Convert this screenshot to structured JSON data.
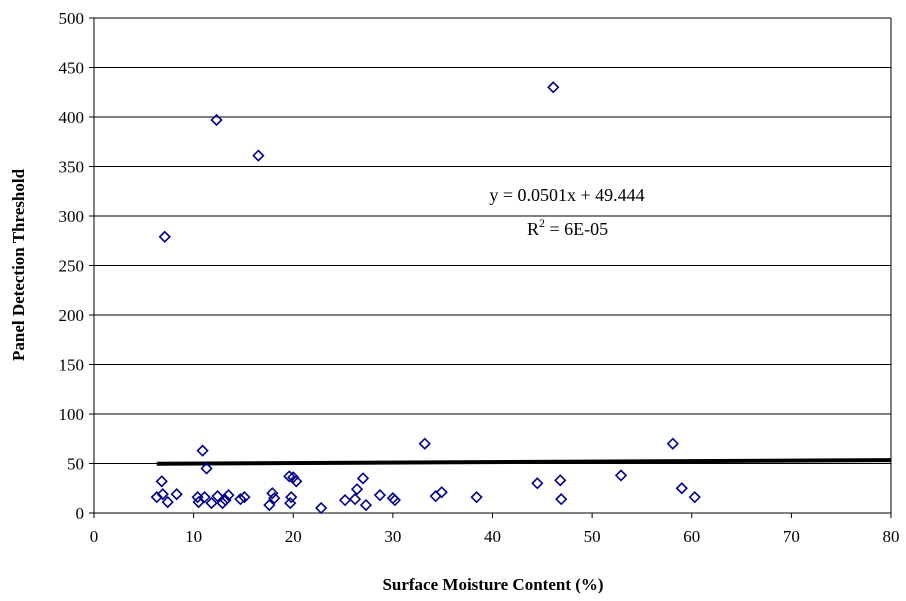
{
  "chart_data": {
    "type": "scatter",
    "title": "",
    "xlabel": "Surface Moisture Content (%)",
    "ylabel": "Panel Detection Threshold",
    "xlim": [
      0,
      80
    ],
    "ylim": [
      0,
      500
    ],
    "xticks": [
      0,
      10,
      20,
      30,
      40,
      50,
      60,
      70,
      80
    ],
    "yticks": [
      0,
      50,
      100,
      150,
      200,
      250,
      300,
      350,
      400,
      450,
      500
    ],
    "grid": {
      "horizontal": true,
      "vertical": false
    },
    "legend": "none",
    "marker": {
      "shape": "diamond-open",
      "color": "#00008b"
    },
    "trendline": {
      "type": "linear",
      "slope": 0.0501,
      "intercept": 49.444,
      "x_range": [
        6.3,
        80
      ],
      "color": "#000000"
    },
    "annotation": {
      "equation": "y = 0.0501x + 49.444",
      "r2_prefix": "R",
      "r2_sup": "2",
      "r2_value": " = 6E-05"
    },
    "points": [
      {
        "x": 6.3,
        "y": 16
      },
      {
        "x": 6.8,
        "y": 32
      },
      {
        "x": 6.9,
        "y": 19
      },
      {
        "x": 7.1,
        "y": 279
      },
      {
        "x": 7.4,
        "y": 11
      },
      {
        "x": 8.3,
        "y": 19
      },
      {
        "x": 10.4,
        "y": 16
      },
      {
        "x": 10.5,
        "y": 11
      },
      {
        "x": 10.9,
        "y": 63
      },
      {
        "x": 11.1,
        "y": 16
      },
      {
        "x": 11.3,
        "y": 45
      },
      {
        "x": 11.8,
        "y": 10
      },
      {
        "x": 12.3,
        "y": 397
      },
      {
        "x": 12.4,
        "y": 17
      },
      {
        "x": 12.9,
        "y": 10
      },
      {
        "x": 13.2,
        "y": 13
      },
      {
        "x": 13.5,
        "y": 18
      },
      {
        "x": 14.7,
        "y": 14
      },
      {
        "x": 15.1,
        "y": 16
      },
      {
        "x": 16.5,
        "y": 361
      },
      {
        "x": 17.6,
        "y": 8
      },
      {
        "x": 17.9,
        "y": 20
      },
      {
        "x": 18.1,
        "y": 15
      },
      {
        "x": 19.6,
        "y": 37
      },
      {
        "x": 19.7,
        "y": 10
      },
      {
        "x": 19.8,
        "y": 16
      },
      {
        "x": 20.0,
        "y": 36
      },
      {
        "x": 20.3,
        "y": 32
      },
      {
        "x": 22.8,
        "y": 5
      },
      {
        "x": 25.2,
        "y": 13
      },
      {
        "x": 26.2,
        "y": 14
      },
      {
        "x": 26.4,
        "y": 24
      },
      {
        "x": 27.0,
        "y": 35
      },
      {
        "x": 27.3,
        "y": 8
      },
      {
        "x": 28.7,
        "y": 18
      },
      {
        "x": 30.0,
        "y": 15
      },
      {
        "x": 30.2,
        "y": 13
      },
      {
        "x": 33.2,
        "y": 70
      },
      {
        "x": 34.3,
        "y": 17
      },
      {
        "x": 34.9,
        "y": 21
      },
      {
        "x": 38.4,
        "y": 16
      },
      {
        "x": 44.5,
        "y": 30
      },
      {
        "x": 46.1,
        "y": 430
      },
      {
        "x": 46.8,
        "y": 33
      },
      {
        "x": 46.9,
        "y": 14
      },
      {
        "x": 52.9,
        "y": 38
      },
      {
        "x": 58.1,
        "y": 70
      },
      {
        "x": 59.0,
        "y": 25
      },
      {
        "x": 60.3,
        "y": 16
      }
    ]
  }
}
